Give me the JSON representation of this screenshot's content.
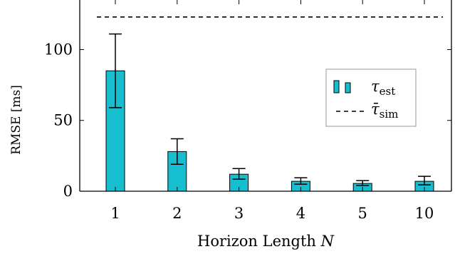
{
  "chart_data": {
    "type": "bar",
    "categories": [
      "1",
      "2",
      "3",
      "4",
      "5",
      "10"
    ],
    "series": [
      {
        "name": "τest",
        "values": [
          85,
          28,
          12,
          7,
          5.5,
          7
        ],
        "error_low": [
          59,
          19,
          8.5,
          5,
          4,
          4.5
        ],
        "error_high": [
          111,
          37,
          16,
          9.5,
          7.5,
          10.5
        ],
        "color": "#17becf"
      }
    ],
    "reference": {
      "name": "τ̄sim",
      "value": 123,
      "style": "dashed"
    },
    "xlabel": "Horizon Length N",
    "ylabel": "RMSE [ms]",
    "yticks": [
      0,
      50,
      100
    ],
    "ylim": [
      0,
      135
    ],
    "legend_position": "right",
    "legend": {
      "est_main": "τ",
      "est_sub": "est",
      "sim_main": "τ̄",
      "sim_sub": "sim"
    },
    "axis": {
      "xlabel_main": "Horizon Length ",
      "xlabel_var": "N"
    }
  }
}
